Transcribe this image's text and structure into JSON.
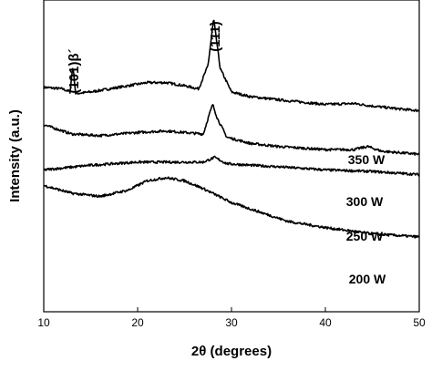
{
  "chart_data": {
    "type": "line",
    "xlabel": "2θ (degrees)",
    "ylabel": "Intensity (a.u.)",
    "xlim": [
      10,
      50
    ],
    "xticks": [
      "10",
      "20",
      "30",
      "40",
      "50"
    ],
    "yticks_shown": false,
    "grid": false,
    "legend": "none",
    "series": [
      {
        "name": "350 W",
        "x": [
          10,
          12,
          12.8,
          13.1,
          13.4,
          15,
          18,
          21,
          23,
          25,
          26.5,
          27.5,
          28.1,
          28.8,
          30,
          32,
          35,
          40,
          43,
          45,
          48,
          50
        ],
        "y": [
          0.72,
          0.715,
          0.705,
          0.79,
          0.7,
          0.705,
          0.72,
          0.735,
          0.735,
          0.725,
          0.715,
          0.79,
          0.94,
          0.78,
          0.705,
          0.69,
          0.68,
          0.665,
          0.668,
          0.66,
          0.65,
          0.645
        ]
      },
      {
        "name": "300 W",
        "x": [
          10,
          13,
          16,
          20,
          23,
          25,
          27,
          27.6,
          28.0,
          28.5,
          29.5,
          32,
          35,
          40,
          43,
          44.5,
          46,
          48,
          50
        ],
        "y": [
          0.6,
          0.57,
          0.565,
          0.575,
          0.58,
          0.575,
          0.57,
          0.63,
          0.665,
          0.62,
          0.56,
          0.54,
          0.53,
          0.52,
          0.52,
          0.53,
          0.515,
          0.51,
          0.505
        ]
      },
      {
        "name": "250 W",
        "x": [
          10,
          15,
          20,
          25,
          27,
          28.2,
          29.5,
          32,
          35,
          40,
          45,
          50
        ],
        "y": [
          0.455,
          0.47,
          0.48,
          0.48,
          0.48,
          0.495,
          0.475,
          0.47,
          0.465,
          0.455,
          0.45,
          0.44
        ]
      },
      {
        "name": "200 W",
        "x": [
          10,
          13,
          16,
          19,
          21,
          23,
          25,
          27,
          30,
          33,
          36,
          40,
          45,
          50
        ],
        "y": [
          0.405,
          0.38,
          0.37,
          0.39,
          0.42,
          0.43,
          0.42,
          0.395,
          0.35,
          0.32,
          0.29,
          0.27,
          0.25,
          0.24
        ]
      }
    ],
    "annotations": [
      {
        "text": "(111)",
        "x": 28.1
      },
      {
        "text": "(101)β´",
        "x": 13.1
      }
    ]
  }
}
